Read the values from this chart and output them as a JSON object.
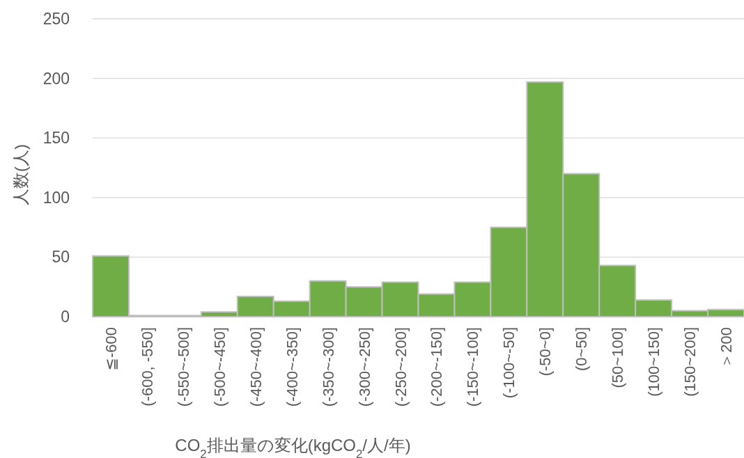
{
  "chart_data": {
    "type": "bar",
    "xlabel": "CO$_{2}$排出量の変化(kgCO$_{2}$/人/年)",
    "ylabel": "人数(人)",
    "categories": [
      "≦-600",
      "(-600, -550]",
      "(-550~-500]",
      "(-500~-450]",
      "(-450~-400]",
      "(-400~-350]",
      "(-350~-300]",
      "(-300~-250]",
      "(-250~-200]",
      "(-200~-150]",
      "(-150~-100]",
      "(-100~-50]",
      "(-50~0]",
      "(0~50]",
      "(50~100]",
      "(100~150]",
      "(150~200]",
      "＞200"
    ],
    "values": [
      51,
      1,
      1,
      4,
      17,
      13,
      30,
      25,
      29,
      19,
      29,
      75,
      197,
      120,
      43,
      14,
      5,
      6
    ],
    "color": "#70ad47",
    "ylim": [
      0,
      250
    ],
    "yticks": [
      0,
      50,
      100,
      150,
      200,
      250
    ],
    "grid": "y"
  }
}
